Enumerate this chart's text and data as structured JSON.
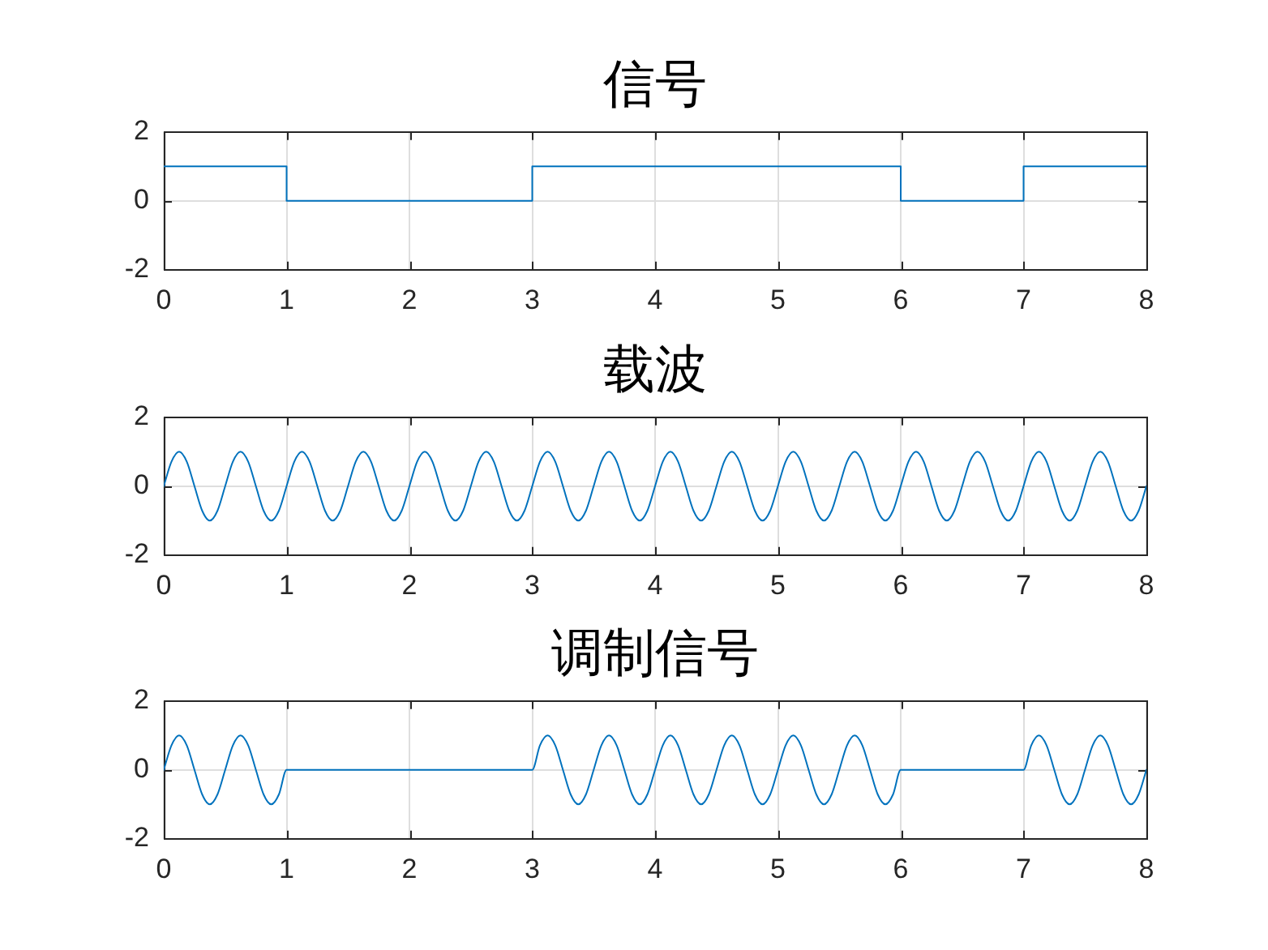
{
  "chart_data": [
    {
      "type": "line",
      "title": "信号",
      "x": [
        0,
        1,
        1,
        3,
        3,
        6,
        6,
        7,
        7,
        8
      ],
      "series": [
        {
          "color": "#0072bd",
          "values": [
            1,
            1,
            0,
            0,
            1,
            1,
            0,
            0,
            1,
            1
          ]
        }
      ],
      "xlim": [
        0,
        8
      ],
      "ylim": [
        -2,
        2
      ],
      "xticks": [
        0,
        1,
        2,
        3,
        4,
        5,
        6,
        7,
        8
      ],
      "yticks": [
        -2,
        0,
        2
      ],
      "grid": true,
      "marker": "none",
      "line_style": "solid"
    },
    {
      "type": "line",
      "title": "载波",
      "x": [
        0,
        0.0625,
        0.125,
        0.1875,
        0.25,
        0.3125,
        0.375,
        0.4375,
        0.5,
        0.5625,
        0.625,
        0.6875,
        0.75,
        0.8125,
        0.875,
        0.9375,
        1,
        1.0625,
        1.125,
        1.1875,
        1.25,
        1.3125,
        1.375,
        1.4375,
        1.5,
        1.5625,
        1.625,
        1.6875,
        1.75,
        1.8125,
        1.875,
        1.9375,
        2,
        2.0625,
        2.125,
        2.1875,
        2.25,
        2.3125,
        2.375,
        2.4375,
        2.5,
        2.5625,
        2.625,
        2.6875,
        2.75,
        2.8125,
        2.875,
        2.9375,
        3,
        3.0625,
        3.125,
        3.1875,
        3.25,
        3.3125,
        3.375,
        3.4375,
        3.5,
        3.5625,
        3.625,
        3.6875,
        3.75,
        3.8125,
        3.875,
        3.9375,
        4,
        4.0625,
        4.125,
        4.1875,
        4.25,
        4.3125,
        4.375,
        4.4375,
        4.5,
        4.5625,
        4.625,
        4.6875,
        4.75,
        4.8125,
        4.875,
        4.9375,
        5,
        5.0625,
        5.125,
        5.1875,
        5.25,
        5.3125,
        5.375,
        5.4375,
        5.5,
        5.5625,
        5.625,
        5.6875,
        5.75,
        5.8125,
        5.875,
        5.9375,
        6,
        6.0625,
        6.125,
        6.1875,
        6.25,
        6.3125,
        6.375,
        6.4375,
        6.5,
        6.5625,
        6.625,
        6.6875,
        6.75,
        6.8125,
        6.875,
        6.9375,
        7,
        7.0625,
        7.125,
        7.1875,
        7.25,
        7.3125,
        7.375,
        7.4375,
        7.5,
        7.5625,
        7.625,
        7.6875,
        7.75,
        7.8125,
        7.875,
        7.9375,
        8
      ],
      "series": [
        {
          "color": "#0072bd",
          "values": [
            0,
            0.71,
            1,
            0.71,
            0,
            -0.71,
            -1,
            -0.71,
            0,
            0.71,
            1,
            0.71,
            0,
            -0.71,
            -1,
            -0.71,
            0,
            0.71,
            1,
            0.71,
            0,
            -0.71,
            -1,
            -0.71,
            0,
            0.71,
            1,
            0.71,
            0,
            -0.71,
            -1,
            -0.71,
            0,
            0.71,
            1,
            0.71,
            0,
            -0.71,
            -1,
            -0.71,
            0,
            0.71,
            1,
            0.71,
            0,
            -0.71,
            -1,
            -0.71,
            0,
            0.71,
            1,
            0.71,
            0,
            -0.71,
            -1,
            -0.71,
            0,
            0.71,
            1,
            0.71,
            0,
            -0.71,
            -1,
            -0.71,
            0,
            0.71,
            1,
            0.71,
            0,
            -0.71,
            -1,
            -0.71,
            0,
            0.71,
            1,
            0.71,
            0,
            -0.71,
            -1,
            -0.71,
            0,
            0.71,
            1,
            0.71,
            0,
            -0.71,
            -1,
            -0.71,
            0,
            0.71,
            1,
            0.71,
            0,
            -0.71,
            -1,
            -0.71,
            0,
            0.71,
            1,
            0.71,
            0,
            -0.71,
            -1,
            -0.71,
            0,
            0.71,
            1,
            0.71,
            0,
            -0.71,
            -1,
            -0.71,
            0,
            0.71,
            1,
            0.71,
            0,
            -0.71,
            -1,
            -0.71,
            0,
            0.71,
            1,
            0.71,
            0,
            -0.71,
            -1,
            -0.71,
            0
          ]
        }
      ],
      "xlim": [
        0,
        8
      ],
      "ylim": [
        -2,
        2
      ],
      "xticks": [
        0,
        1,
        2,
        3,
        4,
        5,
        6,
        7,
        8
      ],
      "yticks": [
        -2,
        0,
        2
      ],
      "grid": true,
      "marker": "none",
      "line_style": "solid"
    },
    {
      "type": "line",
      "title": "调制信号",
      "x": [
        0,
        0.0625,
        0.125,
        0.1875,
        0.25,
        0.3125,
        0.375,
        0.4375,
        0.5,
        0.5625,
        0.625,
        0.6875,
        0.75,
        0.8125,
        0.875,
        0.9375,
        1,
        1.0625,
        1.125,
        1.1875,
        1.25,
        1.3125,
        1.375,
        1.4375,
        1.5,
        1.5625,
        1.625,
        1.6875,
        1.75,
        1.8125,
        1.875,
        1.9375,
        2,
        2.0625,
        2.125,
        2.1875,
        2.25,
        2.3125,
        2.375,
        2.4375,
        2.5,
        2.5625,
        2.625,
        2.6875,
        2.75,
        2.8125,
        2.875,
        2.9375,
        3,
        3.0625,
        3.125,
        3.1875,
        3.25,
        3.3125,
        3.375,
        3.4375,
        3.5,
        3.5625,
        3.625,
        3.6875,
        3.75,
        3.8125,
        3.875,
        3.9375,
        4,
        4.0625,
        4.125,
        4.1875,
        4.25,
        4.3125,
        4.375,
        4.4375,
        4.5,
        4.5625,
        4.625,
        4.6875,
        4.75,
        4.8125,
        4.875,
        4.9375,
        5,
        5.0625,
        5.125,
        5.1875,
        5.25,
        5.3125,
        5.375,
        5.4375,
        5.5,
        5.5625,
        5.625,
        5.6875,
        5.75,
        5.8125,
        5.875,
        5.9375,
        6,
        6.0625,
        6.125,
        6.1875,
        6.25,
        6.3125,
        6.375,
        6.4375,
        6.5,
        6.5625,
        6.625,
        6.6875,
        6.75,
        6.8125,
        6.875,
        6.9375,
        7,
        7.0625,
        7.125,
        7.1875,
        7.25,
        7.3125,
        7.375,
        7.4375,
        7.5,
        7.5625,
        7.625,
        7.6875,
        7.75,
        7.8125,
        7.875,
        7.9375,
        8
      ],
      "series": [
        {
          "color": "#0072bd",
          "values": [
            0,
            0.71,
            1,
            0.71,
            0,
            -0.71,
            -1,
            -0.71,
            0,
            0.71,
            1,
            0.71,
            0,
            -0.71,
            -1,
            -0.71,
            0,
            0,
            0,
            0,
            0,
            0,
            0,
            0,
            0,
            0,
            0,
            0,
            0,
            0,
            0,
            0,
            0,
            0,
            0,
            0,
            0,
            0,
            0,
            0,
            0,
            0,
            0,
            0,
            0,
            0,
            0,
            0,
            0,
            0.71,
            1,
            0.71,
            0,
            -0.71,
            -1,
            -0.71,
            0,
            0.71,
            1,
            0.71,
            0,
            -0.71,
            -1,
            -0.71,
            0,
            0.71,
            1,
            0.71,
            0,
            -0.71,
            -1,
            -0.71,
            0,
            0.71,
            1,
            0.71,
            0,
            -0.71,
            -1,
            -0.71,
            0,
            0.71,
            1,
            0.71,
            0,
            -0.71,
            -1,
            -0.71,
            0,
            0.71,
            1,
            0.71,
            0,
            -0.71,
            -1,
            -0.71,
            0,
            0,
            0,
            0,
            0,
            0,
            0,
            0,
            0,
            0,
            0,
            0,
            0,
            0,
            0,
            0,
            0,
            0.71,
            1,
            0.71,
            0,
            -0.71,
            -1,
            -0.71,
            0,
            0.71,
            1,
            0.71,
            0,
            -0.71,
            -1,
            -0.71,
            0
          ]
        }
      ],
      "xlim": [
        0,
        8
      ],
      "ylim": [
        -2,
        2
      ],
      "xticks": [
        0,
        1,
        2,
        3,
        4,
        5,
        6,
        7,
        8
      ],
      "yticks": [
        -2,
        0,
        2
      ],
      "grid": true,
      "marker": "none",
      "line_style": "solid"
    }
  ]
}
